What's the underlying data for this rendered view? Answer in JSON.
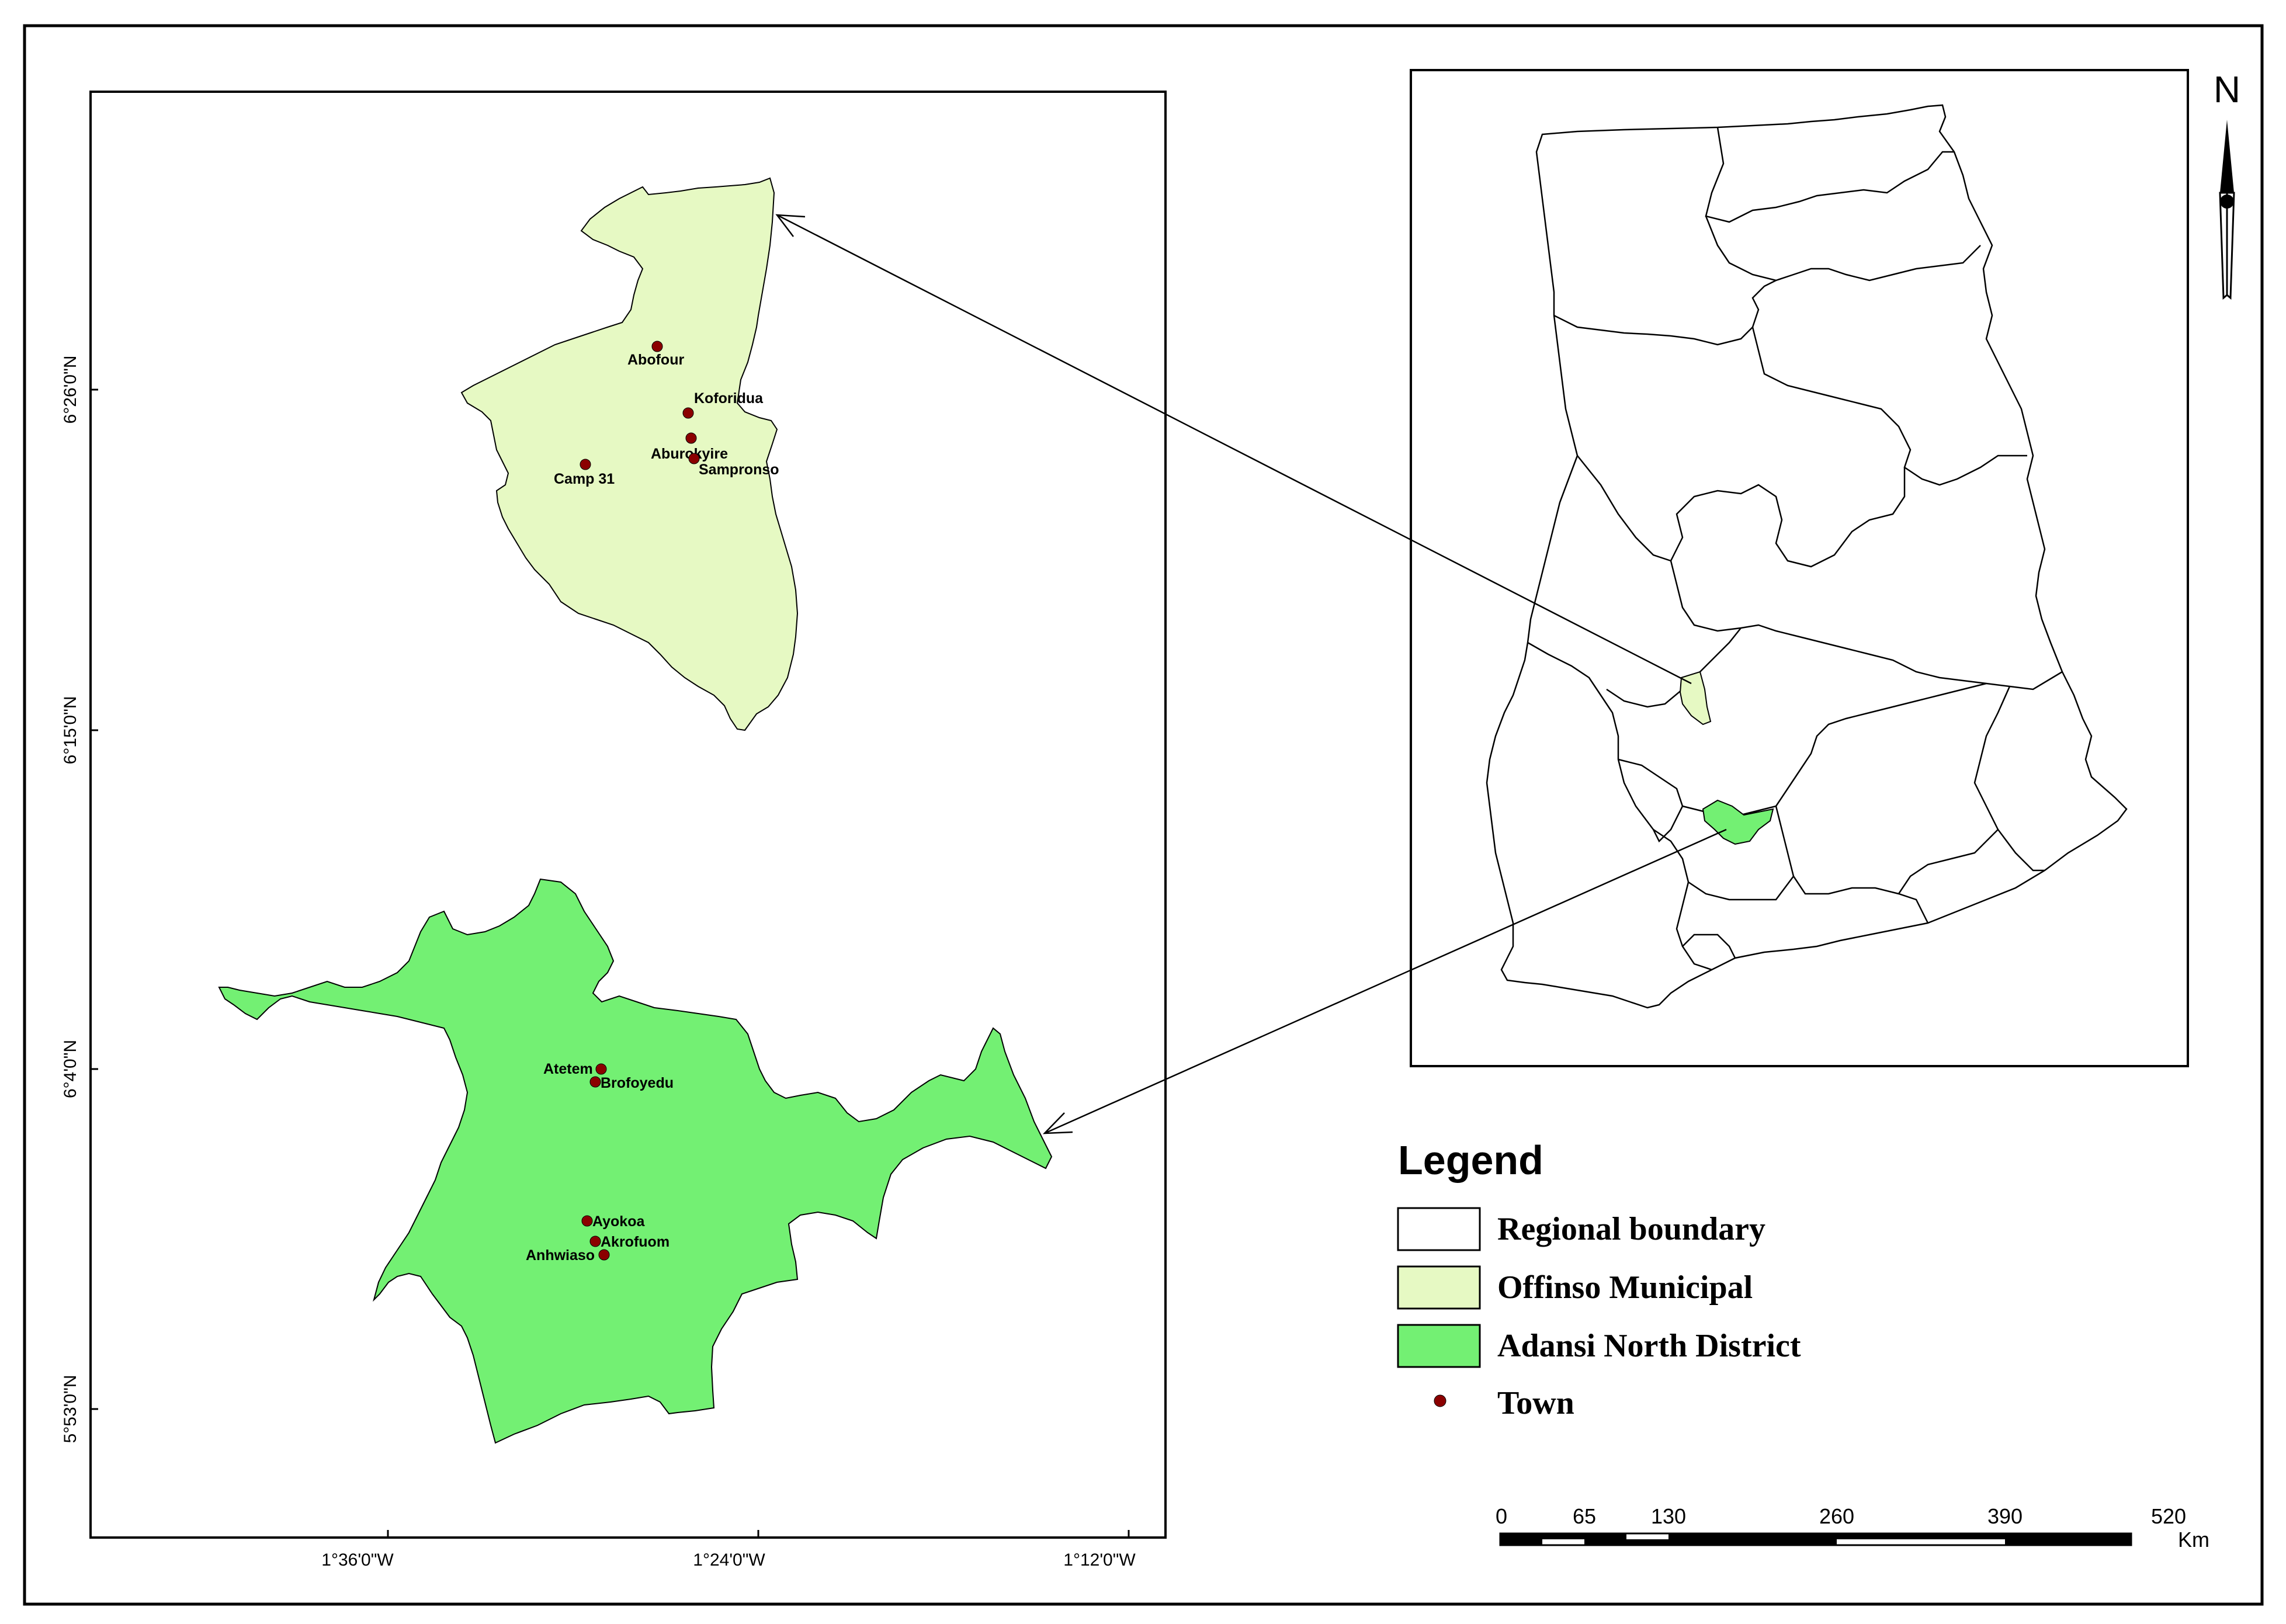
{
  "main_map": {
    "lat_labels": [
      "6°26'0\"N",
      "6°15'0\"N",
      "6°4'0\"N",
      "5°53'0\"N"
    ],
    "lon_labels": [
      "1°36'0\"W",
      "1°24'0\"W",
      "1°12'0\"W"
    ]
  },
  "districts": {
    "offinso": {
      "fill": "#e6f9c3",
      "towns": [
        "Abofour",
        "Koforidua",
        "Aburokyire",
        "Sampronso",
        "Camp 31"
      ]
    },
    "adansi": {
      "fill": "#73f073",
      "towns": [
        "Atetem",
        "Brofoyedu",
        "Ayokoa",
        "Akrofuom",
        "Anhwiaso"
      ]
    }
  },
  "town_color": "#8b0000",
  "north_arrow": {
    "label": "N"
  },
  "legend": {
    "title": "Legend",
    "items": [
      "Regional boundary",
      "Offinso Municipal",
      "Adansi North District",
      "Town"
    ]
  },
  "scale_bar": {
    "ticks": [
      "0",
      "65",
      "130",
      "260",
      "390",
      "520"
    ],
    "unit": "Km"
  }
}
